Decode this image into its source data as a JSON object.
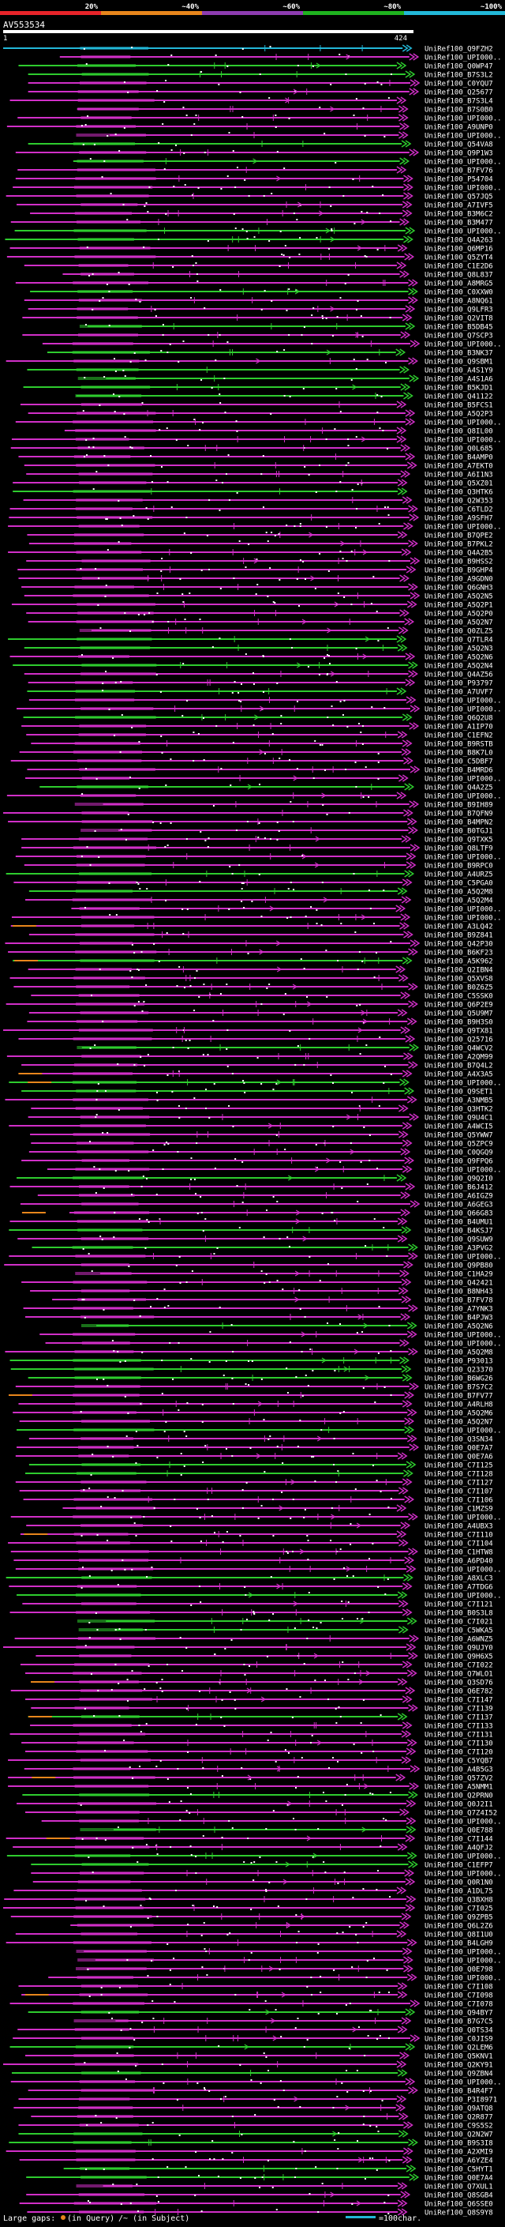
{
  "chart_data": {
    "type": "alignment-overview",
    "title": "AV553534",
    "query_start": "1",
    "query_end": "424",
    "scale_labels": [
      "20%",
      "~40%",
      "~60%",
      "~80%",
      "~100%"
    ],
    "scale_colors": [
      "#e8242a",
      "#e8861c",
      "#8e3cb0",
      "#1fb21f",
      "#23b8d8"
    ],
    "query_length": 424,
    "hits": [
      "UniRef100_Q9FZH2",
      "UniRef100_UPI000..",
      "UniRef100_Q0WP47",
      "UniRef100_B7S3L2",
      "UniRef100_C0YQU7",
      "UniRef100_Q25677",
      "UniRef100_B7S3L4",
      "UniRef100_B7S0B0",
      "UniRef100_UPI000..",
      "UniRef100_A9UNP0",
      "UniRef100_UPI000..",
      "UniRef100_Q54VA8",
      "UniRef100_Q9P1W3",
      "UniRef100_UPI000..",
      "UniRef100_B7FV76",
      "UniRef100_P54704",
      "UniRef100_UPI000..",
      "UniRef100_Q57JQ5",
      "UniRef100_A7IVF5",
      "UniRef100_B3M6C2",
      "UniRef100_B3M477",
      "UniRef100_UPI000..",
      "UniRef100_Q4A263",
      "UniRef100_Q6MP16",
      "UniRef100_Q5ZYT4",
      "UniRef100_C1E2D6",
      "UniRef100_Q8L837",
      "UniRef100_A8MRG5",
      "UniRef100_C0XXW0",
      "UniRef100_A8NQ61",
      "UniRef100_Q9LFR3",
      "UniRef100_Q2VIT8",
      "UniRef100_B5DB45",
      "UniRef100_Q7SCP3",
      "UniRef100_UPI000..",
      "UniRef100_B3NK37",
      "UniRef100_Q9SBM1",
      "UniRef100_A4S1Y9",
      "UniRef100_A4S1A6",
      "UniRef100_B5KJD1",
      "UniRef100_Q41122",
      "UniRef100_B5FCS1",
      "UniRef100_A5Q2P3",
      "UniRef100_UPI000..",
      "UniRef100_Q8IL00",
      "UniRef100_UPI000..",
      "UniRef100_Q0L685",
      "UniRef100_B4AMP0",
      "UniRef100_A7EKT0",
      "UniRef100_A6I1N3",
      "UniRef100_Q5XZ01",
      "UniRef100_Q3HTK6",
      "UniRef100_Q2W353",
      "UniRef100_C6TLD2",
      "UniRef100_A9SFH7",
      "UniRef100_UPI000..",
      "UniRef100_B7QPE2",
      "UniRef100_B7PKL2",
      "UniRef100_Q4A2B5",
      "UniRef100_B9HSS2",
      "UniRef100_B9GHP4",
      "UniRef100_A9GDN0",
      "UniRef100_Q6GNH3",
      "UniRef100_A5Q2N5",
      "UniRef100_A5Q2P1",
      "UniRef100_A5Q2P0",
      "UniRef100_A5Q2N7",
      "UniRef100_Q0ZLZ5",
      "UniRef100_Q7TLR4",
      "UniRef100_A5Q2N3",
      "UniRef100_A5Q2N6",
      "UniRef100_A5Q2N4",
      "UniRef100_Q4AZ56",
      "UniRef100_P93797",
      "UniRef100_A7UVF7",
      "UniRef100_UPI000..",
      "UniRef100_UPI000..",
      "UniRef100_Q6Q2U8",
      "UniRef100_A1IP70",
      "UniRef100_C1EFN2",
      "UniRef100_B9RSTB",
      "UniRef100_B8K7L0",
      "UniRef100_C5DBF7",
      "UniRef100_B4MRD6",
      "UniRef100_UPI000..",
      "UniRef100_Q4A2Z5",
      "UniRef100_UPI000..",
      "UniRef100_B9IH89",
      "UniRef100_B7QFN9",
      "UniRef100_B4MPN2",
      "UniRef100_B0TGJ1",
      "UniRef100_Q9TXK5",
      "UniRef100_Q8LTF9",
      "UniRef100_UPI000..",
      "UniRef100_B9RPC0",
      "UniRef100_A4URZ5",
      "UniRef100_C5PGA0",
      "UniRef100_A5Q2M8",
      "UniRef100_A5Q2M4",
      "UniRef100_UPI000..",
      "UniRef100_UPI000..",
      "UniRef100_A3LQ42",
      "UniRef100_B9Z841",
      "UniRef100_Q42P30",
      "UniRef100_B6KF23",
      "UniRef100_A5K962",
      "UniRef100_Q2IBN4",
      "UniRef100_Q5XVS8",
      "UniRef100_B0Z6Z5",
      "UniRef100_C5SSK0",
      "UniRef100_Q6P2E9",
      "UniRef100_Q5U9M7",
      "UniRef100_B9H3S0",
      "UniRef100_Q9TX81",
      "UniRef100_Q25716",
      "UniRef100_Q4WCV2",
      "UniRef100_A2QM99",
      "UniRef100_B7Q4L2",
      "UniRef100_A4X3A5",
      "UniRef100_UPI000..",
      "UniRef100_Q9SET1",
      "UniRef100_A3NMB5",
      "UniRef100_Q3HTK2",
      "UniRef100_Q9U4C1",
      "UniRef100_A4WCI5",
      "UniRef100_Q5YWW7",
      "UniRef100_Q5ZPC9",
      "UniRef100_C0QGQ9",
      "UniRef100_Q9FPQ6",
      "UniRef100_UPI000..",
      "UniRef100_Q9Q2I0",
      "UniRef100_B6J412",
      "UniRef100_A6IGZ9",
      "UniRef100_A6GEG3",
      "UniRef100_Q66G83",
      "UniRef100_B4UMU1",
      "UniRef100_B4KSJ7",
      "UniRef100_Q9SUW9",
      "UniRef100_A3PVG2",
      "UniRef100_UPI000..",
      "UniRef100_Q9PB80",
      "UniRef100_C1HA29",
      "UniRef100_Q42421",
      "UniRef100_B8NH43",
      "UniRef100_B7FV78",
      "UniRef100_A7YNK3",
      "UniRef100_B4PJW3",
      "UniRef100_A5Q2N6",
      "UniRef100_UPI000..",
      "UniRef100_UPI000..",
      "UniRef100_A5Q2M8",
      "UniRef100_P93013",
      "UniRef100_Q23370",
      "UniRef100_B6WG26",
      "UniRef100_B7S7C2",
      "UniRef100_B7FV77",
      "UniRef100_A4RLH8",
      "UniRef100_A5Q2M6",
      "UniRef100_A5Q2N7",
      "UniRef100_UPI000..",
      "UniRef100_Q3SN34",
      "UniRef100_Q0E7A7",
      "UniRef100_Q0E7A6",
      "UniRef100_C7I125",
      "UniRef100_C7I128",
      "UniRef100_C7I127",
      "UniRef100_C7I107",
      "UniRef100_C7I106",
      "UniRef100_C1MZS9",
      "UniRef100_UPI000..",
      "UniRef100_A4UBX3",
      "UniRef100_C7I110",
      "UniRef100_C7I104",
      "UniRef100_C1HTW8",
      "UniRef100_A6PD40",
      "UniRef100_UPI000..",
      "UniRef100_A8XLC3",
      "UniRef100_A7TDG6",
      "UniRef100_UPI000..",
      "UniRef100_C7I121",
      "UniRef100_B0S3L8",
      "UniRef100_C7I021",
      "UniRef100_C5WKA5",
      "UniRef100_A6WNZ5",
      "UniRef100_Q9UJY0",
      "UniRef100_Q9H6X5",
      "UniRef100_C7I022",
      "UniRef100_Q7WLO1",
      "UniRef100_Q3SD76",
      "UniRef100_Q6E782",
      "UniRef100_C7I147",
      "UniRef100_C7I139",
      "UniRef100_C7I137",
      "UniRef100_C7I133",
      "UniRef100_C7I131",
      "UniRef100_C7I130",
      "UniRef100_C7I120",
      "UniRef100_C5YQB7",
      "UniRef100_A4B5G3",
      "UniRef100_Q57ZV2",
      "UniRef100_A5NMM1",
      "UniRef100_Q2PRN0",
      "UniRef100_Q0J2I1",
      "UniRef100_Q7Z4I52",
      "UniRef100_UPI000..",
      "UniRef100_Q0E788",
      "UniRef100_C7I144",
      "UniRef100_A4QFJ2",
      "UniRef100_UPI000..",
      "UniRef100_C1EFP7",
      "UniRef100_UPI000..",
      "UniRef100_Q0R1N0",
      "UniRef100_A1DL75",
      "UniRef100_Q3BXH8",
      "UniRef100_C7I025",
      "UniRef100_Q9ZPB5",
      "UniRef100_Q6L2Z6",
      "UniRef100_Q8I1U0",
      "UniRef100_B4LGH9",
      "UniRef100_UPI000..",
      "UniRef100_UPI000..",
      "UniRef100_Q0E798",
      "UniRef100_UPI000..",
      "UniRef100_C7I108",
      "UniRef100_C7I098",
      "UniRef100_C7I078",
      "UniRef100_Q94BY7",
      "UniRef100_B7G7C5",
      "UniRef100_Q0TS34",
      "UniRef100_C0JIS9",
      "UniRef100_Q2LEM6",
      "UniRef100_Q5KNV1",
      "UniRef100_Q2KY91",
      "UniRef100_Q9ZBN4",
      "UniRef100_UPI000..",
      "UniRef100_B4R4F7",
      "UniRef100_P3I8971",
      "UniRef100_Q9ATQ8",
      "UniRef100_Q2R877",
      "UniRef100_C9S5S2",
      "UniRef100_Q2N2W7",
      "UniRef100_B9S3I8",
      "UniRef100_A2XMI9",
      "UniRef100_A6YZE4",
      "UniRef100_C5HYT1",
      "UniRef100_Q0E7A4",
      "UniRef100_Q7XUL1",
      "UniRef100_Q8SGB4",
      "UniRef100_Q6SSE0",
      "UniRef100_Q8S9Y8"
    ],
    "legend_prefix": "Large gaps:",
    "legend_query": "(in Query)",
    "legend_subject": "/~ (in Subject)",
    "legend_scale": "=100char."
  }
}
